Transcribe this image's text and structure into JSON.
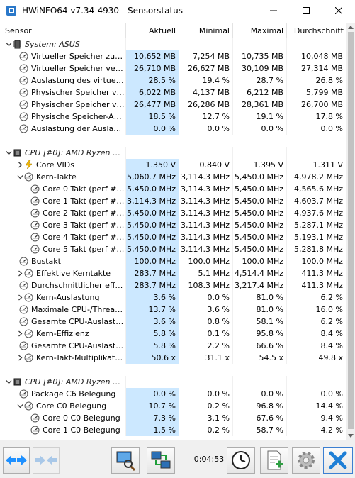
{
  "window": {
    "title": "HWiNFO64 v7.34-4930 - Sensorstatus"
  },
  "columns": [
    "Sensor",
    "Aktuell",
    "Minimal",
    "Maximal",
    "Durchschnitt"
  ],
  "rows": [
    {
      "kind": "group",
      "exp": "collapse",
      "indent": 0,
      "icon": "memory-chip-icon",
      "label": "System: ASUS"
    },
    {
      "kind": "item",
      "indent": 1,
      "icon": "gauge-icon",
      "label": "Virtueller Speicher zugew...",
      "v": [
        "10,652 MB",
        "7,254 MB",
        "10,735 MB",
        "10,048 MB"
      ]
    },
    {
      "kind": "item",
      "indent": 1,
      "icon": "gauge-icon",
      "label": "Virtueller Speicher verfüg...",
      "v": [
        "26,710 MB",
        "26,627 MB",
        "30,109 MB",
        "27,314 MB"
      ]
    },
    {
      "kind": "item",
      "indent": 1,
      "icon": "gauge-icon",
      "label": "Auslastung des virtuellen...",
      "v": [
        "28.5 %",
        "19.4 %",
        "28.7 %",
        "26.8 %"
      ]
    },
    {
      "kind": "item",
      "indent": 1,
      "icon": "gauge-icon",
      "label": "Physischer Speicher ver...",
      "v": [
        "6,022 MB",
        "4,137 MB",
        "6,212 MB",
        "5,799 MB"
      ]
    },
    {
      "kind": "item",
      "indent": 1,
      "icon": "gauge-icon",
      "label": "Physischer Speicher verf...",
      "v": [
        "26,477 MB",
        "26,286 MB",
        "28,361 MB",
        "26,700 MB"
      ]
    },
    {
      "kind": "item",
      "indent": 1,
      "icon": "gauge-icon",
      "label": "Physische Speicher-Ausla...",
      "v": [
        "18.5 %",
        "12.7 %",
        "19.1 %",
        "17.8 %"
      ]
    },
    {
      "kind": "item",
      "indent": 1,
      "icon": "gauge-icon",
      "label": "Auslastung der Auslager...",
      "v": [
        "0.0 %",
        "0.0 %",
        "0.0 %",
        "0.0 %"
      ]
    },
    {
      "kind": "blank"
    },
    {
      "kind": "group",
      "exp": "collapse",
      "indent": 0,
      "icon": "cpu-chip-icon",
      "label": "CPU [#0]: AMD Ryzen 5 ..."
    },
    {
      "kind": "item",
      "indent": 1,
      "exp": "expand",
      "icon": "lightning-icon",
      "label": "Core VIDs",
      "v": [
        "1.350 V",
        "0.840 V",
        "1.395 V",
        "1.311 V"
      ]
    },
    {
      "kind": "item",
      "indent": 1,
      "exp": "collapse",
      "icon": "gauge-icon",
      "label": "Kern-Takte",
      "v": [
        "5,060.7 MHz",
        "3,114.3 MHz",
        "5,450.0 MHz",
        "4,978.2 MHz"
      ]
    },
    {
      "kind": "item",
      "indent": 2,
      "icon": "gauge-icon",
      "label": "Core 0 Takt (perf #4/5)",
      "v": [
        "5,450.0 MHz",
        "3,114.3 MHz",
        "5,450.0 MHz",
        "4,565.6 MHz"
      ]
    },
    {
      "kind": "item",
      "indent": 2,
      "icon": "gauge-icon",
      "label": "Core 1 Takt (perf #5/6)",
      "v": [
        "3,114.3 MHz",
        "3,114.3 MHz",
        "5,450.0 MHz",
        "4,603.7 MHz"
      ]
    },
    {
      "kind": "item",
      "indent": 2,
      "icon": "gauge-icon",
      "label": "Core 2 Takt (perf #3/4)",
      "v": [
        "5,450.0 MHz",
        "3,114.3 MHz",
        "5,450.0 MHz",
        "4,937.6 MHz"
      ]
    },
    {
      "kind": "item",
      "indent": 2,
      "icon": "gauge-icon",
      "label": "Core 3 Takt (perf #1/2)",
      "v": [
        "5,450.0 MHz",
        "3,114.3 MHz",
        "5,450.0 MHz",
        "5,287.1 MHz"
      ]
    },
    {
      "kind": "item",
      "indent": 2,
      "icon": "gauge-icon",
      "label": "Core 4 Takt (perf #2/3)",
      "v": [
        "5,450.0 MHz",
        "3,114.3 MHz",
        "5,450.0 MHz",
        "5,193.1 MHz"
      ]
    },
    {
      "kind": "item",
      "indent": 2,
      "icon": "gauge-icon",
      "label": "Core 5 Takt (perf #1/1)",
      "v": [
        "5,450.0 MHz",
        "3,114.3 MHz",
        "5,450.0 MHz",
        "5,281.8 MHz"
      ]
    },
    {
      "kind": "item",
      "indent": 1,
      "icon": "gauge-icon",
      "label": "Bustakt",
      "v": [
        "100.0 MHz",
        "100.0 MHz",
        "100.0 MHz",
        "100.0 MHz"
      ]
    },
    {
      "kind": "item",
      "indent": 1,
      "exp": "expand",
      "icon": "gauge-icon",
      "label": "Effektive Kerntakte",
      "v": [
        "283.7 MHz",
        "5.1 MHz",
        "4,514.4 MHz",
        "411.3 MHz"
      ]
    },
    {
      "kind": "item",
      "indent": 1,
      "icon": "gauge-icon",
      "label": "Durchschnittlicher effekti...",
      "v": [
        "283.7 MHz",
        "108.3 MHz",
        "3,217.4 MHz",
        "411.3 MHz"
      ]
    },
    {
      "kind": "item",
      "indent": 1,
      "exp": "expand",
      "icon": "gauge-icon",
      "label": "Kern-Auslastung",
      "v": [
        "3.6 %",
        "0.0 %",
        "81.0 %",
        "6.2 %"
      ]
    },
    {
      "kind": "item",
      "indent": 1,
      "icon": "gauge-icon",
      "label": "Maximale CPU-/Thread-A...",
      "v": [
        "13.7 %",
        "3.6 %",
        "81.0 %",
        "16.0 %"
      ]
    },
    {
      "kind": "item",
      "indent": 1,
      "icon": "gauge-icon",
      "label": "Gesamte CPU-Auslastung",
      "v": [
        "3.6 %",
        "0.8 %",
        "58.1 %",
        "6.2 %"
      ]
    },
    {
      "kind": "item",
      "indent": 1,
      "exp": "expand",
      "icon": "gauge-icon",
      "label": "Kern-Effizienz",
      "v": [
        "5.8 %",
        "0.1 %",
        "95.8 %",
        "8.4 %"
      ]
    },
    {
      "kind": "item",
      "indent": 1,
      "icon": "gauge-icon",
      "label": "Gesamte CPU-Auslastung",
      "v": [
        "5.8 %",
        "2.2 %",
        "66.6 %",
        "8.4 %"
      ]
    },
    {
      "kind": "item",
      "indent": 1,
      "exp": "expand",
      "icon": "gauge-icon",
      "label": "Kern-Takt-Multiplikato...",
      "v": [
        "50.6 x",
        "31.1 x",
        "54.5 x",
        "49.8 x"
      ]
    },
    {
      "kind": "blank"
    },
    {
      "kind": "group",
      "exp": "collapse",
      "indent": 0,
      "icon": "cpu-chip-icon",
      "label": "CPU [#0]: AMD Ryzen 5 ..."
    },
    {
      "kind": "item",
      "indent": 1,
      "icon": "gauge-icon",
      "label": "Package C6 Belegung",
      "v": [
        "0.0 %",
        "0.0 %",
        "0.0 %",
        "0.0 %"
      ]
    },
    {
      "kind": "item",
      "indent": 1,
      "exp": "collapse",
      "icon": "gauge-icon",
      "label": "Core C0 Belegung",
      "v": [
        "10.7 %",
        "0.2 %",
        "96.8 %",
        "14.4 %"
      ]
    },
    {
      "kind": "item",
      "indent": 2,
      "icon": "gauge-icon",
      "label": "Core 0 C0 Belegung",
      "v": [
        "7.3 %",
        "3.1 %",
        "67.6 %",
        "9.4 %"
      ]
    },
    {
      "kind": "item",
      "indent": 2,
      "icon": "gauge-icon",
      "label": "Core 1 C0 Belegung",
      "v": [
        "1.5 %",
        "0.2 %",
        "58.7 %",
        "4.2 %"
      ]
    }
  ],
  "toolbar": {
    "elapsed": "0:04:53"
  },
  "colors": {
    "highlight": "#cce8ff",
    "accent_blue": "#1e90ff",
    "close_red": "#d9342b"
  }
}
